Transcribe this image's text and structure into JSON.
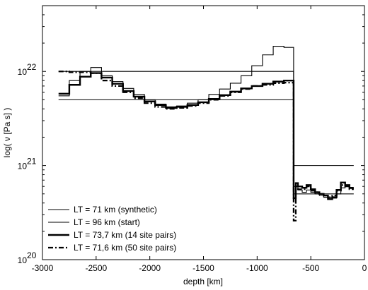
{
  "chart_data": {
    "type": "line",
    "title": "",
    "xlabel": "depth [km]",
    "ylabel": "log( ν [Pa s] )",
    "xlim": [
      -3000,
      0
    ],
    "ylim": [
      1e+20,
      5e+22
    ],
    "yscale": "log",
    "grid": false,
    "legend_position": "bottom-left",
    "x_ticks": [
      {
        "value": -3000,
        "label": "-3000"
      },
      {
        "value": -2500,
        "label": "-2500"
      },
      {
        "value": -2000,
        "label": "-2000"
      },
      {
        "value": -1500,
        "label": "-1500"
      },
      {
        "value": -1000,
        "label": "-1000"
      },
      {
        "value": -500,
        "label": "-500"
      },
      {
        "value": 0,
        "label": "0"
      }
    ],
    "y_ticks": [
      {
        "value": 1e+20,
        "base": "10",
        "exp": "20"
      },
      {
        "value": 1e+21,
        "base": "10",
        "exp": "21"
      },
      {
        "value": 1e+22,
        "base": "10",
        "exp": "22"
      }
    ],
    "series": [
      {
        "name": "LT = 71 km (synthetic)",
        "style": "thin",
        "x": [
          -2850,
          -660,
          -660,
          -100
        ],
        "y": [
          5e+21,
          5e+21,
          5e+20,
          5e+20
        ]
      },
      {
        "name": "LT = 96 km (start)",
        "style": "thin",
        "x": [
          -2850,
          -660,
          -660,
          -100
        ],
        "y": [
          1e+22,
          1e+22,
          1e+21,
          1e+21
        ]
      },
      {
        "name": "",
        "style": "thin",
        "x": [
          -2850,
          -2750,
          -2750,
          -2650,
          -2650,
          -2550,
          -2550,
          -2450,
          -2450,
          -2350,
          -2350,
          -2250,
          -2250,
          -2150,
          -2150,
          -2050,
          -2050,
          -1950,
          -1950,
          -1850,
          -1850,
          -1750,
          -1750,
          -1650,
          -1650,
          -1550,
          -1550,
          -1450,
          -1450,
          -1350,
          -1350,
          -1250,
          -1250,
          -1150,
          -1150,
          -1050,
          -1050,
          -950,
          -950,
          -850,
          -850,
          -750,
          -750,
          -660,
          -660,
          -620,
          -620,
          -580,
          -580,
          -540,
          -540,
          -500,
          -500,
          -460,
          -460,
          -420,
          -420,
          -380,
          -380,
          -340,
          -340,
          -300,
          -300,
          -260,
          -260,
          -220,
          -220,
          -180,
          -180,
          -140,
          -140,
          -100
        ],
        "y": [
          5.5e+21,
          5.5e+21,
          8e+21,
          8e+21,
          1e+22,
          1e+22,
          1.1e+22,
          1.1e+22,
          9e+21,
          9e+21,
          7.8e+21,
          7.8e+21,
          6.6e+21,
          6.6e+21,
          5.7e+21,
          5.7e+21,
          5e+21,
          5e+21,
          4.5e+21,
          4.5e+21,
          4.2e+21,
          4.2e+21,
          4.3e+21,
          4.3e+21,
          4.6e+21,
          4.6e+21,
          5e+21,
          5e+21,
          5.7e+21,
          5.7e+21,
          6.5e+21,
          6.5e+21,
          7.5e+21,
          7.5e+21,
          9e+21,
          9e+21,
          1.15e+22,
          1.15e+22,
          1.5e+22,
          1.5e+22,
          1.85e+22,
          1.85e+22,
          1.8e+22,
          1.8e+22,
          6e+20,
          6e+20,
          5.5e+20,
          5.5e+20,
          5.2e+20,
          5.2e+20,
          5.5e+20,
          5.5e+20,
          5.2e+20,
          5.2e+20,
          5e+20,
          5e+20,
          4.8e+20,
          4.8e+20,
          4.6e+20,
          4.6e+20,
          4.6e+20,
          4.6e+20,
          4.5e+20,
          4.5e+20,
          5e+20,
          5e+20,
          5.8e+20,
          5.8e+20,
          6.2e+20,
          6.2e+20,
          5.7e+20,
          5.7e+20
        ]
      },
      {
        "name": "LT = 73,7 km (14 site pairs)",
        "style": "thick",
        "x": [
          -2850,
          -2750,
          -2750,
          -2650,
          -2650,
          -2550,
          -2550,
          -2450,
          -2450,
          -2350,
          -2350,
          -2250,
          -2250,
          -2150,
          -2150,
          -2050,
          -2050,
          -1950,
          -1950,
          -1850,
          -1850,
          -1750,
          -1750,
          -1650,
          -1650,
          -1550,
          -1550,
          -1450,
          -1450,
          -1350,
          -1350,
          -1250,
          -1250,
          -1150,
          -1150,
          -1050,
          -1050,
          -950,
          -950,
          -850,
          -850,
          -750,
          -750,
          -660,
          -660,
          -640,
          -640,
          -620,
          -620,
          -580,
          -580,
          -540,
          -540,
          -500,
          -500,
          -460,
          -460,
          -420,
          -420,
          -380,
          -380,
          -340,
          -340,
          -300,
          -300,
          -260,
          -260,
          -220,
          -220,
          -180,
          -180,
          -140,
          -140,
          -100
        ],
        "y": [
          5.8e+21,
          5.8e+21,
          7.2e+21,
          7.2e+21,
          8.8e+21,
          8.8e+21,
          9.6e+21,
          9.6e+21,
          8.6e+21,
          8.6e+21,
          7.4e+21,
          7.4e+21,
          6.2e+21,
          6.2e+21,
          5.4e+21,
          5.4e+21,
          4.8e+21,
          4.8e+21,
          4.4e+21,
          4.4e+21,
          4.1e+21,
          4.1e+21,
          4.2e+21,
          4.2e+21,
          4.4e+21,
          4.4e+21,
          4.7e+21,
          4.7e+21,
          5.1e+21,
          5.1e+21,
          5.6e+21,
          5.6e+21,
          6.1e+21,
          6.1e+21,
          6.6e+21,
          6.6e+21,
          7e+21,
          7e+21,
          7.4e+21,
          7.4e+21,
          7.8e+21,
          7.8e+21,
          8e+21,
          8e+21,
          4.5e+20,
          4.5e+20,
          6.5e+20,
          6.5e+20,
          6e+20,
          6e+20,
          5.8e+20,
          5.8e+20,
          6.2e+20,
          6.2e+20,
          5.6e+20,
          5.6e+20,
          5.2e+20,
          5.2e+20,
          5e+20,
          5e+20,
          4.8e+20,
          4.8e+20,
          4.4e+20,
          4.4e+20,
          4.6e+20,
          4.6e+20,
          5.5e+20,
          5.5e+20,
          6.6e+20,
          6.6e+20,
          6.2e+20,
          6.2e+20,
          5.8e+20,
          5.8e+20
        ]
      },
      {
        "name": "LT = 71,6 km (50 site pairs)",
        "style": "dashdot",
        "x": [
          -2850,
          -2750,
          -2750,
          -2650,
          -2650,
          -2550,
          -2550,
          -2450,
          -2450,
          -2350,
          -2350,
          -2250,
          -2250,
          -2150,
          -2150,
          -2050,
          -2050,
          -1950,
          -1950,
          -1850,
          -1850,
          -1750,
          -1750,
          -1650,
          -1650,
          -1550,
          -1550,
          -1450,
          -1450,
          -1350,
          -1350,
          -1250,
          -1250,
          -1150,
          -1150,
          -1050,
          -1050,
          -950,
          -950,
          -850,
          -850,
          -750,
          -750,
          -660,
          -660,
          -640,
          -640,
          -620,
          -620,
          -580,
          -580,
          -540,
          -540,
          -500,
          -500,
          -460,
          -460,
          -420,
          -420,
          -380,
          -380,
          -340,
          -340,
          -300,
          -300,
          -260,
          -260,
          -220,
          -220,
          -180,
          -180,
          -140,
          -140,
          -100
        ],
        "y": [
          1e+22,
          1e+22,
          9.8e+21,
          9.8e+21,
          9.8e+21,
          9.8e+21,
          9.6e+21,
          9.6e+21,
          8e+21,
          8e+21,
          7e+21,
          7e+21,
          6e+21,
          6e+21,
          5.2e+21,
          5.2e+21,
          4.6e+21,
          4.6e+21,
          4.2e+21,
          4.2e+21,
          4e+21,
          4e+21,
          4.1e+21,
          4.1e+21,
          4.3e+21,
          4.3e+21,
          4.6e+21,
          4.6e+21,
          5e+21,
          5e+21,
          5.5e+21,
          5.5e+21,
          6e+21,
          6e+21,
          6.5e+21,
          6.5e+21,
          7e+21,
          7e+21,
          7.2e+21,
          7.2e+21,
          7.5e+21,
          7.5e+21,
          7.6e+21,
          7.6e+21,
          2.6e+20,
          2.6e+20,
          6e+20,
          6e+20,
          5.6e+20,
          5.6e+20,
          5.6e+20,
          5.6e+20,
          6e+20,
          6e+20,
          5.4e+20,
          5.4e+20,
          5.2e+20,
          5.2e+20,
          5e+20,
          5e+20,
          4.8e+20,
          4.8e+20,
          4.6e+20,
          4.6e+20,
          4.8e+20,
          4.8e+20,
          5.4e+20,
          5.4e+20,
          6.2e+20,
          6.2e+20,
          6e+20,
          6e+20,
          5.6e+20,
          5.6e+20
        ]
      }
    ],
    "legend_order": [
      0,
      1,
      3,
      4
    ]
  }
}
